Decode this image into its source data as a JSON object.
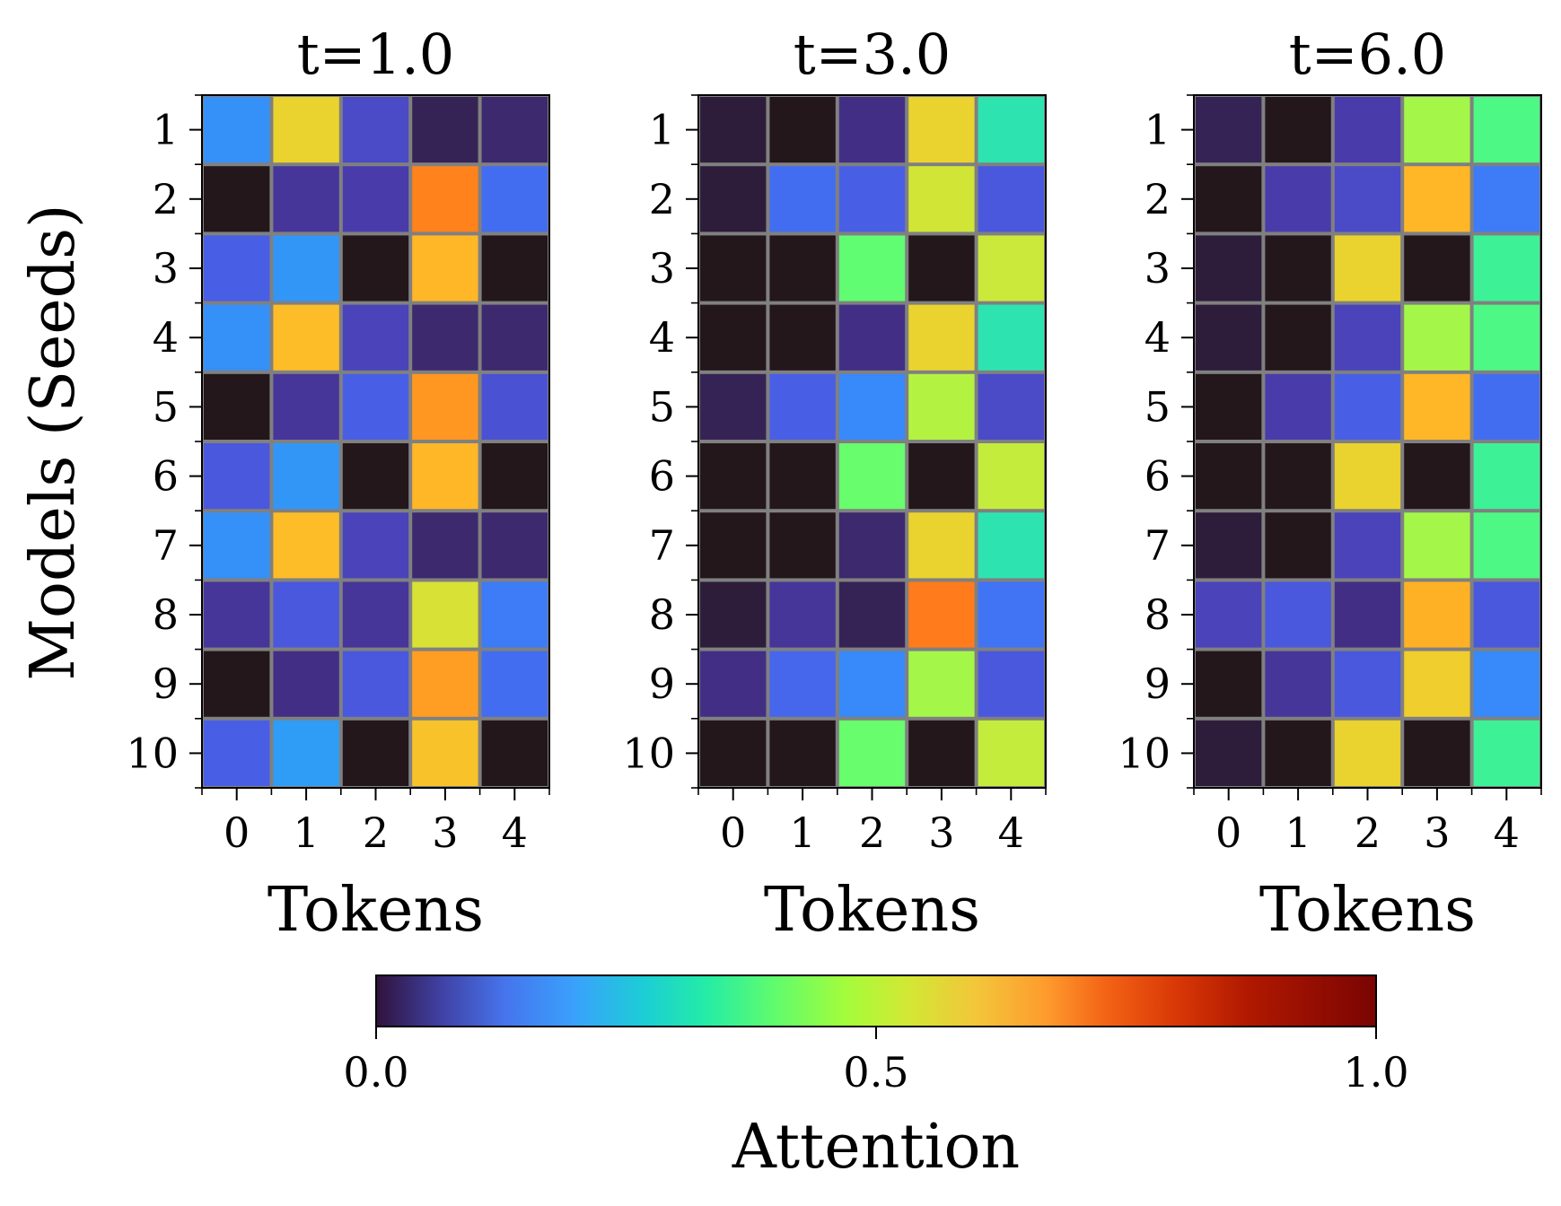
{
  "chart_data": {
    "type": "heatmap",
    "colormap": "turbo",
    "ylabel": "Models (Seeds)",
    "row_labels": [
      "1",
      "2",
      "3",
      "4",
      "5",
      "6",
      "7",
      "8",
      "9",
      "10"
    ],
    "col_labels": [
      "0",
      "1",
      "2",
      "3",
      "4"
    ],
    "panels": [
      {
        "title": "t=1.0",
        "xlabel": "Tokens",
        "values": [
          [
            0.18,
            0.62,
            0.08,
            0.02,
            0.03
          ],
          [
            0.0,
            0.05,
            0.06,
            0.75,
            0.13
          ],
          [
            0.11,
            0.19,
            0.0,
            0.67,
            0.0
          ],
          [
            0.18,
            0.66,
            0.07,
            0.03,
            0.03
          ],
          [
            0.0,
            0.05,
            0.11,
            0.72,
            0.09
          ],
          [
            0.1,
            0.19,
            0.0,
            0.67,
            0.0
          ],
          [
            0.18,
            0.66,
            0.07,
            0.03,
            0.03
          ],
          [
            0.05,
            0.1,
            0.05,
            0.59,
            0.15
          ],
          [
            0.0,
            0.04,
            0.1,
            0.71,
            0.13
          ],
          [
            0.11,
            0.2,
            0.0,
            0.65,
            0.0
          ]
        ]
      },
      {
        "title": "t=3.0",
        "xlabel": "Tokens",
        "values": [
          [
            0.01,
            0.0,
            0.04,
            0.62,
            0.33
          ],
          [
            0.01,
            0.13,
            0.11,
            0.58,
            0.1
          ],
          [
            0.0,
            0.0,
            0.43,
            0.0,
            0.57
          ],
          [
            0.0,
            0.0,
            0.04,
            0.62,
            0.33
          ],
          [
            0.02,
            0.11,
            0.17,
            0.54,
            0.08
          ],
          [
            0.0,
            0.0,
            0.44,
            0.0,
            0.56
          ],
          [
            0.0,
            0.0,
            0.03,
            0.62,
            0.33
          ],
          [
            0.01,
            0.05,
            0.02,
            0.76,
            0.14
          ],
          [
            0.04,
            0.12,
            0.17,
            0.52,
            0.1
          ],
          [
            0.0,
            0.0,
            0.44,
            0.0,
            0.56
          ]
        ]
      },
      {
        "title": "t=6.0",
        "xlabel": "Tokens",
        "values": [
          [
            0.02,
            0.0,
            0.06,
            0.52,
            0.4
          ],
          [
            0.0,
            0.06,
            0.08,
            0.67,
            0.15
          ],
          [
            0.01,
            0.0,
            0.62,
            0.0,
            0.37
          ],
          [
            0.01,
            0.0,
            0.07,
            0.52,
            0.4
          ],
          [
            0.0,
            0.06,
            0.11,
            0.67,
            0.13
          ],
          [
            0.0,
            0.0,
            0.62,
            0.0,
            0.37
          ],
          [
            0.01,
            0.0,
            0.07,
            0.52,
            0.4
          ],
          [
            0.07,
            0.1,
            0.04,
            0.68,
            0.1
          ],
          [
            0.0,
            0.05,
            0.1,
            0.63,
            0.17
          ],
          [
            0.01,
            0.0,
            0.62,
            0.0,
            0.37
          ]
        ]
      }
    ],
    "colorbar": {
      "label": "Attention",
      "range": [
        0.0,
        1.0
      ],
      "ticks": [
        "0.0",
        "0.5",
        "1.0"
      ],
      "tick_values": [
        0.0,
        0.5,
        1.0
      ]
    }
  }
}
